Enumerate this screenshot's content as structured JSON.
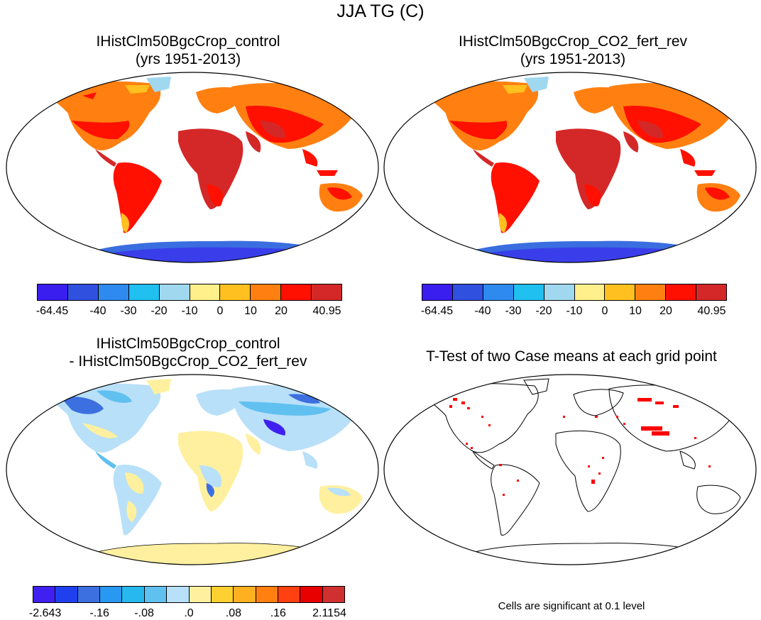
{
  "main_title": "JJA TG (C)",
  "panels": [
    {
      "title_line1": "IHistClm50BgcCrop_control",
      "title_line2": "(yrs 1951-2013)"
    },
    {
      "title_line1": "IHistClm50BgcCrop_CO2_fert_rev",
      "title_line2": "(yrs 1951-2013)"
    },
    {
      "title_line1": "IHistClm50BgcCrop_control",
      "title_line2": "- IHistClm50BgcCrop_CO2_fert_rev"
    },
    {
      "title_line1": "T-Test of two Case means at each grid point",
      "title_line2": ""
    }
  ],
  "colorbar_abs": {
    "colors": [
      "#3a1ef0",
      "#3050e0",
      "#2f8af0",
      "#20c0f0",
      "#a0d8f0",
      "#fff08c",
      "#ffc020",
      "#ff8010",
      "#ff1000",
      "#d42828"
    ],
    "labels": [
      "-64.45",
      "-40",
      "-30",
      "-20",
      "-10",
      "0",
      "10",
      "20",
      "40.95"
    ]
  },
  "colorbar_diff": {
    "colors": [
      "#4020f0",
      "#2040f0",
      "#3c70e0",
      "#2898f0",
      "#28b8f0",
      "#60c0f0",
      "#b8e0f8",
      "#fff0a0",
      "#ffd030",
      "#ffb020",
      "#ff8010",
      "#ff4010",
      "#e80000",
      "#d03030"
    ],
    "labels": [
      "-2.643",
      "-.16",
      "-.08",
      ".0",
      ".08",
      ".16",
      "2.1154"
    ]
  },
  "significance_note": "Cells are significant at 0.1 level",
  "significance_color": "#ff0000"
}
